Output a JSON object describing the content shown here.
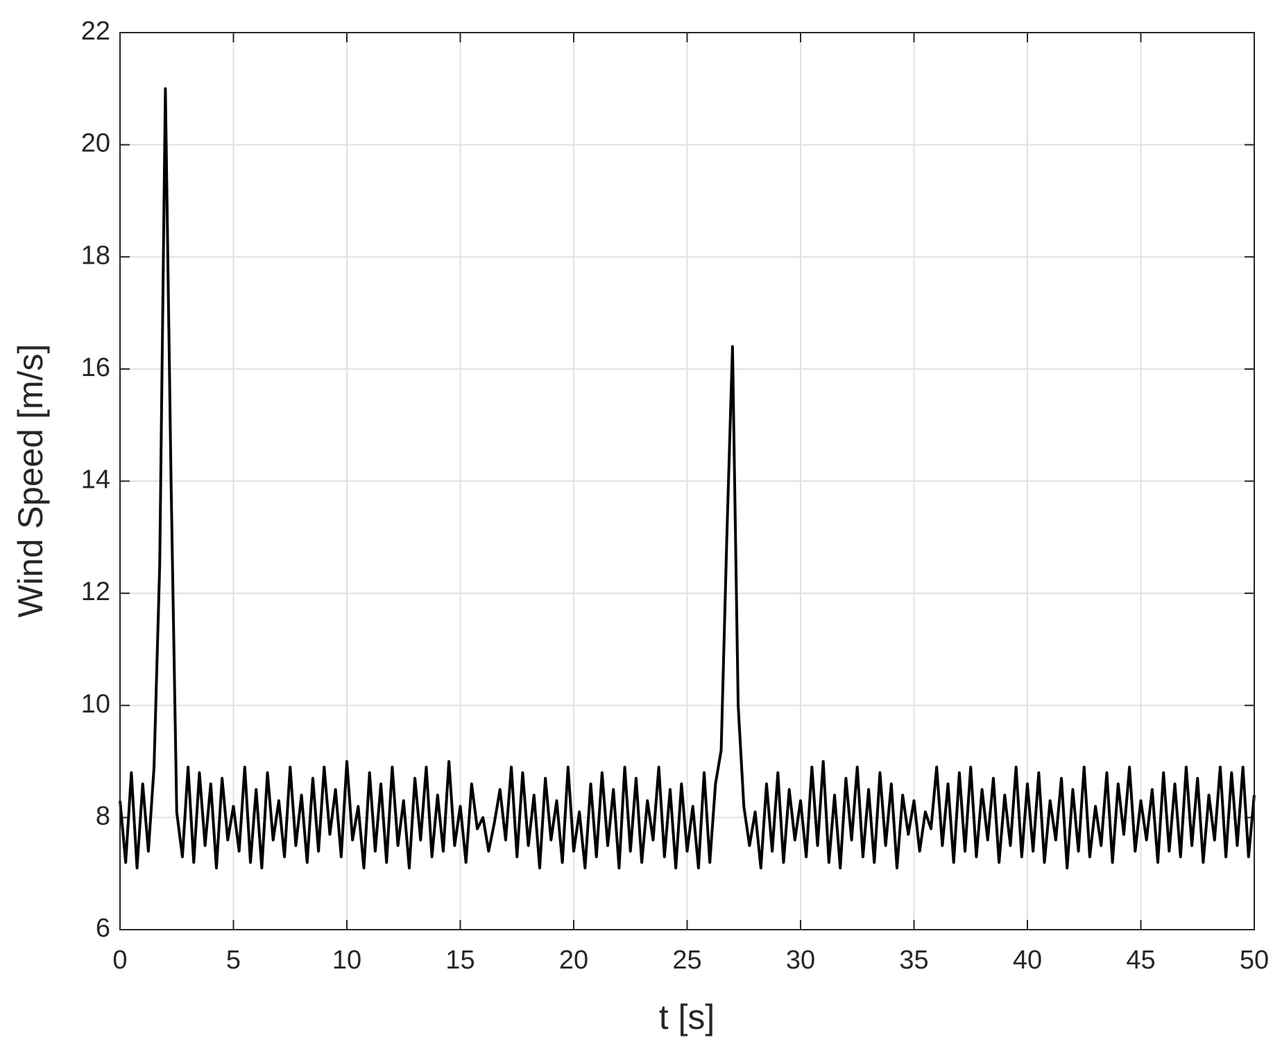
{
  "chart_data": {
    "type": "line",
    "xlabel": "t [s]",
    "ylabel": "Wind Speed [m/s]",
    "xlim": [
      0,
      50
    ],
    "xticks": [
      0,
      5,
      10,
      15,
      20,
      25,
      30,
      35,
      40,
      45,
      50
    ],
    "ylim": [
      6,
      22
    ],
    "yticks": [
      6,
      8,
      10,
      12,
      14,
      16,
      18,
      20,
      22
    ],
    "grid": true,
    "x": [
      0,
      0.25,
      0.5,
      0.75,
      1,
      1.25,
      1.5,
      1.75,
      2,
      2.25,
      2.5,
      2.75,
      3,
      3.25,
      3.5,
      3.75,
      4,
      4.25,
      4.5,
      4.75,
      5,
      5.25,
      5.5,
      5.75,
      6,
      6.25,
      6.5,
      6.75,
      7,
      7.25,
      7.5,
      7.75,
      8,
      8.25,
      8.5,
      8.75,
      9,
      9.25,
      9.5,
      9.75,
      10,
      10.25,
      10.5,
      10.75,
      11,
      11.25,
      11.5,
      11.75,
      12,
      12.25,
      12.5,
      12.75,
      13,
      13.25,
      13.5,
      13.75,
      14,
      14.25,
      14.5,
      14.75,
      15,
      15.25,
      15.5,
      15.75,
      16,
      16.25,
      16.5,
      16.75,
      17,
      17.25,
      17.5,
      17.75,
      18,
      18.25,
      18.5,
      18.75,
      19,
      19.25,
      19.5,
      19.75,
      20,
      20.25,
      20.5,
      20.75,
      21,
      21.25,
      21.5,
      21.75,
      22,
      22.25,
      22.5,
      22.75,
      23,
      23.25,
      23.5,
      23.75,
      24,
      24.25,
      24.5,
      24.75,
      25,
      25.25,
      25.5,
      25.75,
      26,
      26.25,
      26.5,
      26.75,
      27,
      27.25,
      27.5,
      27.75,
      28,
      28.25,
      28.5,
      28.75,
      29,
      29.25,
      29.5,
      29.75,
      30,
      30.25,
      30.5,
      30.75,
      31,
      31.25,
      31.5,
      31.75,
      32,
      32.25,
      32.5,
      32.75,
      33,
      33.25,
      33.5,
      33.75,
      34,
      34.25,
      34.5,
      34.75,
      35,
      35.25,
      35.5,
      35.75,
      36,
      36.25,
      36.5,
      36.75,
      37,
      37.25,
      37.5,
      37.75,
      38,
      38.25,
      38.5,
      38.75,
      39,
      39.25,
      39.5,
      39.75,
      40,
      40.25,
      40.5,
      40.75,
      41,
      41.25,
      41.5,
      41.75,
      42,
      42.25,
      42.5,
      42.75,
      43,
      43.25,
      43.5,
      43.75,
      44,
      44.25,
      44.5,
      44.75,
      45,
      45.25,
      45.5,
      45.75,
      46,
      46.25,
      46.5,
      46.75,
      47,
      47.25,
      47.5,
      47.75,
      48,
      48.25,
      48.5,
      48.75,
      49,
      49.25,
      49.5,
      49.75,
      50
    ],
    "series": [
      {
        "color": "#000000",
        "values": [
          8.3,
          7.2,
          8.8,
          7.1,
          8.6,
          7.4,
          8.9,
          12.5,
          21,
          14,
          8.1,
          7.3,
          8.9,
          7.2,
          8.8,
          7.5,
          8.6,
          7.1,
          8.7,
          7.6,
          8.2,
          7.4,
          8.9,
          7.2,
          8.5,
          7.1,
          8.8,
          7.6,
          8.3,
          7.3,
          8.9,
          7.5,
          8.4,
          7.2,
          8.7,
          7.4,
          8.9,
          7.7,
          8.5,
          7.3,
          9.0,
          7.6,
          8.2,
          7.1,
          8.8,
          7.4,
          8.6,
          7.2,
          8.9,
          7.5,
          8.3,
          7.1,
          8.7,
          7.6,
          8.9,
          7.3,
          8.4,
          7.4,
          9.0,
          7.5,
          8.2,
          7.2,
          8.6,
          7.8,
          8.0,
          7.4,
          7.9,
          8.5,
          7.6,
          8.9,
          7.3,
          8.8,
          7.5,
          8.4,
          7.1,
          8.7,
          7.6,
          8.3,
          7.2,
          8.9,
          7.4,
          8.1,
          7.1,
          8.6,
          7.3,
          8.8,
          7.5,
          8.5,
          7.1,
          8.9,
          7.4,
          8.7,
          7.2,
          8.3,
          7.6,
          8.9,
          7.3,
          8.5,
          7.1,
          8.6,
          7.4,
          8.2,
          7.1,
          8.8,
          7.2,
          8.6,
          9.2,
          13,
          16.4,
          10,
          8.2,
          7.5,
          8.1,
          7.1,
          8.6,
          7.4,
          8.8,
          7.2,
          8.5,
          7.6,
          8.3,
          7.3,
          8.9,
          7.5,
          9.0,
          7.2,
          8.4,
          7.1,
          8.7,
          7.6,
          8.9,
          7.3,
          8.5,
          7.2,
          8.8,
          7.5,
          8.6,
          7.1,
          8.4,
          7.7,
          8.3,
          7.4,
          8.1,
          7.8,
          8.9,
          7.5,
          8.6,
          7.2,
          8.8,
          7.4,
          8.9,
          7.3,
          8.5,
          7.6,
          8.7,
          7.2,
          8.4,
          7.5,
          8.9,
          7.3,
          8.6,
          7.4,
          8.8,
          7.2,
          8.3,
          7.6,
          8.7,
          7.1,
          8.5,
          7.4,
          8.9,
          7.3,
          8.2,
          7.5,
          8.8,
          7.2,
          8.6,
          7.7,
          8.9,
          7.4,
          8.3,
          7.6,
          8.5,
          7.2,
          8.8,
          7.4,
          8.6,
          7.3,
          8.9,
          7.5,
          8.7,
          7.2,
          8.4,
          7.6,
          8.9,
          7.3,
          8.8,
          7.5,
          8.9,
          7.3,
          8.4
        ]
      }
    ]
  }
}
